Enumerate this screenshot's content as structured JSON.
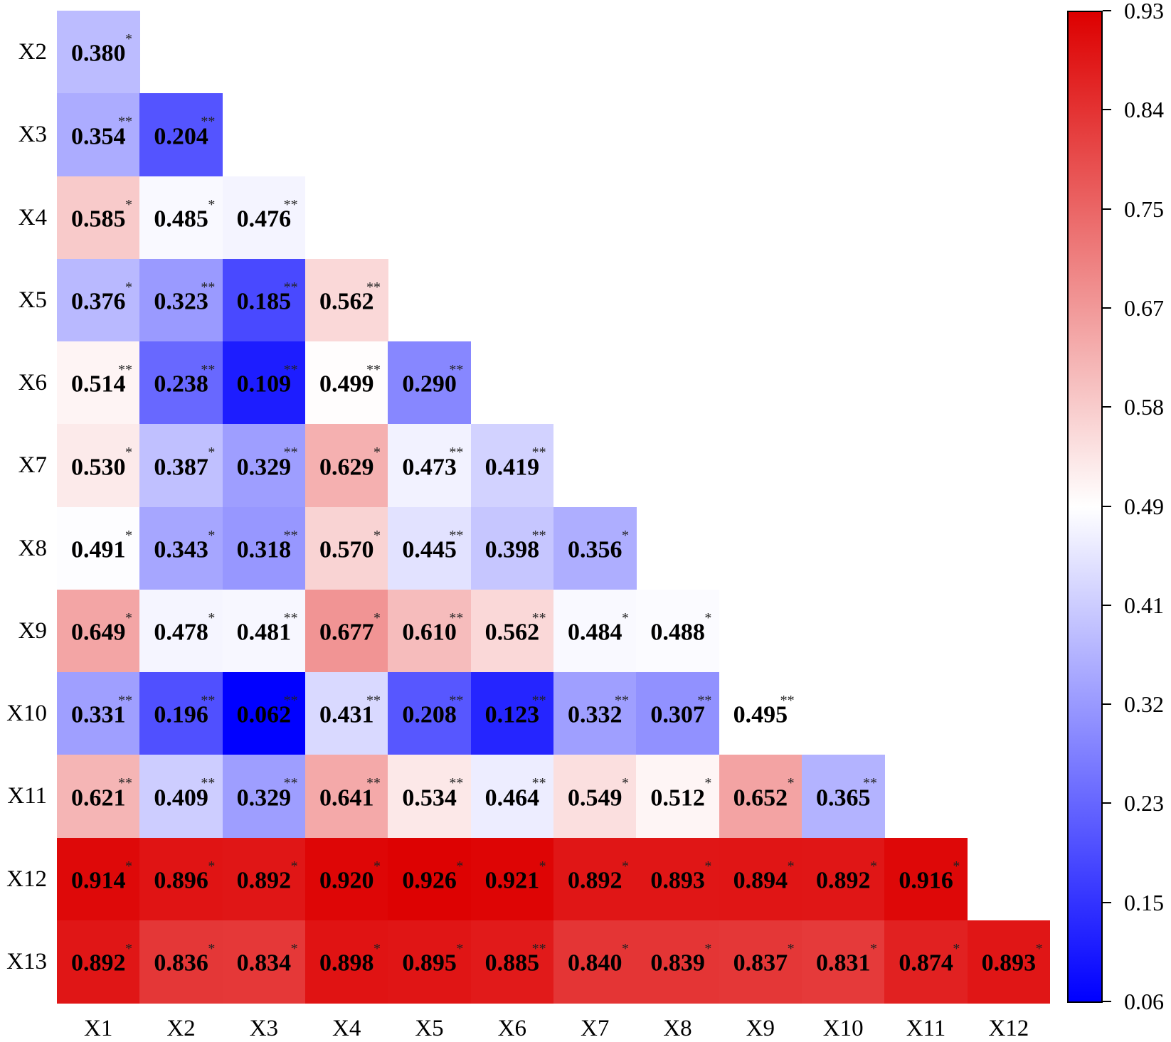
{
  "chart_data": {
    "type": "heatmap",
    "title": "",
    "xlabel": "",
    "ylabel": "",
    "x_labels": [
      "X1",
      "X2",
      "X3",
      "X4",
      "X5",
      "X6",
      "X7",
      "X8",
      "X9",
      "X10",
      "X11",
      "X12"
    ],
    "y_labels": [
      "X2",
      "X3",
      "X4",
      "X5",
      "X6",
      "X7",
      "X8",
      "X9",
      "X10",
      "X11",
      "X12",
      "X13"
    ],
    "layout": "lower-triangular",
    "values": [
      [
        0.38
      ],
      [
        0.354,
        0.204
      ],
      [
        0.585,
        0.485,
        0.476
      ],
      [
        0.376,
        0.323,
        0.185,
        0.562
      ],
      [
        0.514,
        0.238,
        0.109,
        0.499,
        0.29
      ],
      [
        0.53,
        0.387,
        0.329,
        0.629,
        0.473,
        0.419
      ],
      [
        0.491,
        0.343,
        0.318,
        0.57,
        0.445,
        0.398,
        0.356
      ],
      [
        0.649,
        0.478,
        0.481,
        0.677,
        0.61,
        0.562,
        0.484,
        0.488
      ],
      [
        0.331,
        0.196,
        0.062,
        0.431,
        0.208,
        0.123,
        0.332,
        0.307,
        0.495
      ],
      [
        0.621,
        0.409,
        0.329,
        0.641,
        0.534,
        0.464,
        0.549,
        0.512,
        0.652,
        0.365
      ],
      [
        0.914,
        0.896,
        0.892,
        0.92,
        0.926,
        0.921,
        0.892,
        0.893,
        0.894,
        0.892,
        0.916
      ],
      [
        0.892,
        0.836,
        0.834,
        0.898,
        0.895,
        0.885,
        0.84,
        0.839,
        0.837,
        0.831,
        0.874,
        0.893
      ]
    ],
    "significance": [
      [
        "*"
      ],
      [
        "**",
        "**"
      ],
      [
        "*",
        "*",
        "**"
      ],
      [
        "*",
        "**",
        "**",
        "**"
      ],
      [
        "**",
        "**",
        "**",
        "**",
        "**"
      ],
      [
        "*",
        "*",
        "**",
        "*",
        "**",
        "**"
      ],
      [
        "*",
        "*",
        "**",
        "*",
        "**",
        "**",
        "*"
      ],
      [
        "*",
        "*",
        "**",
        "*",
        "**",
        "**",
        "*",
        "*"
      ],
      [
        "**",
        "**",
        "**",
        "**",
        "**",
        "**",
        "**",
        "**",
        "**"
      ],
      [
        "**",
        "**",
        "**",
        "**",
        "**",
        "**",
        "*",
        "*",
        "*",
        "**"
      ],
      [
        "*",
        "*",
        "*",
        "*",
        "*",
        "*",
        "*",
        "*",
        "*",
        "*",
        "*"
      ],
      [
        "*",
        "*",
        "*",
        "*",
        "*",
        "**",
        "*",
        "*",
        "*",
        "*",
        "*",
        "*"
      ]
    ],
    "colorbar": {
      "min": 0.06,
      "max": 0.93,
      "ticks": [
        "0.93",
        "0.84",
        "0.75",
        "0.67",
        "0.58",
        "0.49",
        "0.41",
        "0.32",
        "0.23",
        "0.15",
        "0.06"
      ],
      "colors": {
        "low": "#0000ff",
        "mid": "#ffffff",
        "high": "#dd0000"
      },
      "position": "right"
    }
  }
}
